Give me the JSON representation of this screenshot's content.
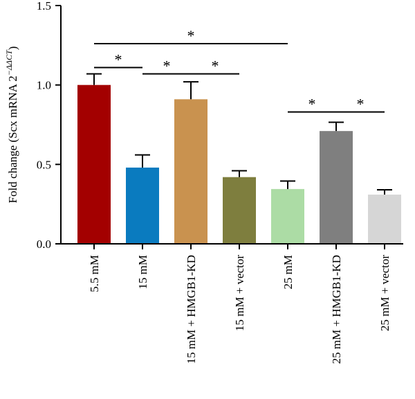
{
  "chart_data": {
    "type": "bar",
    "title": "",
    "xlabel": "",
    "ylabel": "Fold change (Scx mRNA 2",
    "ylabel_superscript": "−ΔΔCT",
    "ylabel_close": ")",
    "ylim": [
      0,
      1.5
    ],
    "yticks": [
      0.0,
      0.5,
      1.0,
      1.5
    ],
    "ytick_labels": [
      "0.0",
      "0.5",
      "1.0",
      "1.5"
    ],
    "categories": [
      "5.5 mM",
      "15 mM",
      "15 mM + HMGB1-KD",
      "15 mM + vector",
      "25 mM",
      "25 mM + HMGB1-KD",
      "25 mM + vector"
    ],
    "values": [
      1.0,
      0.48,
      0.91,
      0.42,
      0.345,
      0.71,
      0.31
    ],
    "errors": [
      0.07,
      0.08,
      0.11,
      0.04,
      0.05,
      0.055,
      0.03
    ],
    "colors": [
      "#a30000",
      "#0a7bbf",
      "#c9924f",
      "#7e7e3e",
      "#acdca5",
      "#7f7f7f",
      "#d6d6d6"
    ],
    "significance": [
      {
        "from": 0,
        "to": 1,
        "y": 1.11,
        "label": "*"
      },
      {
        "from": 2,
        "to": 3,
        "y": 1.07,
        "label": "*"
      },
      {
        "from": 1,
        "to": 2,
        "y": 1.07,
        "label": "*"
      },
      {
        "from": 0,
        "to": 4,
        "y": 1.26,
        "label": "*"
      },
      {
        "from": 4,
        "to": 5,
        "y": 0.83,
        "label": "*"
      },
      {
        "from": 5,
        "to": 6,
        "y": 0.83,
        "label": "*"
      }
    ],
    "grid": false,
    "legend": "none"
  }
}
